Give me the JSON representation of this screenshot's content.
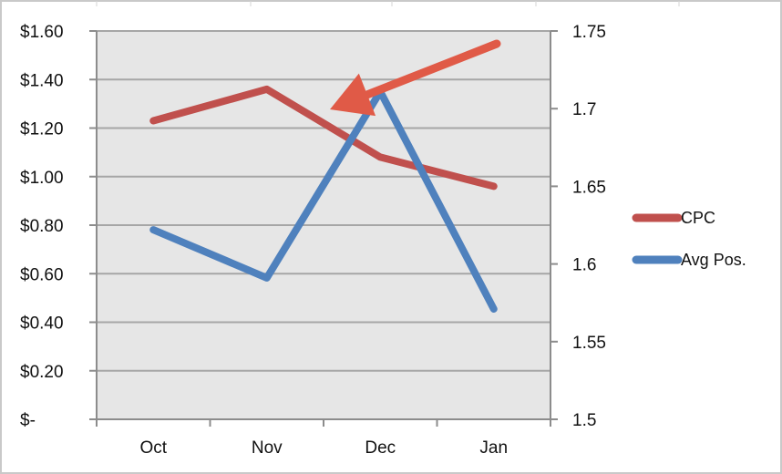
{
  "chart_data": {
    "type": "line",
    "categories": [
      "Oct",
      "Nov",
      "Dec",
      "Jan"
    ],
    "series": [
      {
        "name": "CPC",
        "axis": "left",
        "values": [
          1.23,
          1.36,
          1.08,
          0.96
        ],
        "color": "#c0504d"
      },
      {
        "name": "Avg Pos.",
        "axis": "right",
        "values": [
          1.622,
          1.591,
          1.711,
          1.571
        ],
        "color": "#4f81bd"
      }
    ],
    "y_left": {
      "lim": [
        0,
        1.6
      ],
      "ticks": [
        0,
        0.2,
        0.4,
        0.6,
        0.8,
        1.0,
        1.2,
        1.4,
        1.6
      ],
      "tick_labels": [
        "$-",
        "$0.20",
        "$0.40",
        "$0.60",
        "$0.80",
        "$1.00",
        "$1.20",
        "$1.40",
        "$1.60"
      ]
    },
    "y_right": {
      "lim": [
        1.5,
        1.75
      ],
      "ticks": [
        1.5,
        1.55,
        1.6,
        1.65,
        1.7,
        1.75
      ],
      "tick_labels": [
        "1.5",
        "1.55",
        "1.6",
        "1.65",
        "1.7",
        "1.75"
      ]
    },
    "grid": true,
    "plot_background": "#e6e6e6",
    "grid_color": "#a6a6a6",
    "legend_position": "right",
    "annotation": {
      "type": "arrow",
      "color": "#e05a47",
      "points_to": "CPC line between Nov and Dec"
    }
  }
}
